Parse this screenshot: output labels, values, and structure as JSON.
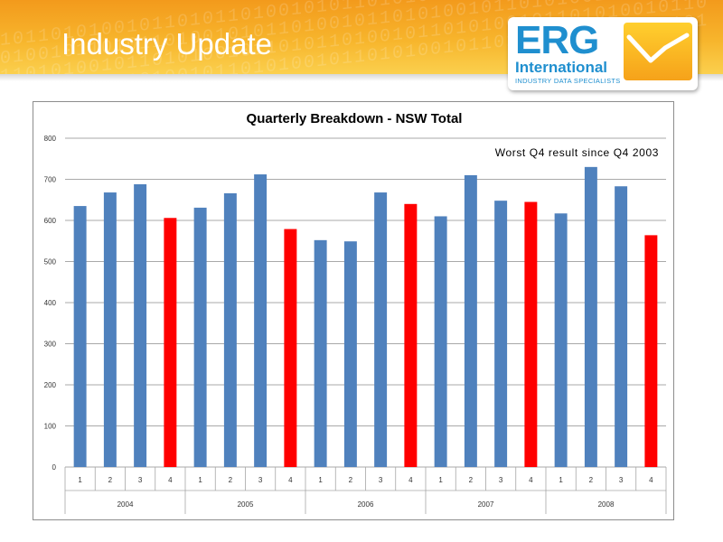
{
  "slide": {
    "title": "Industry Update",
    "logo": {
      "name": "ERG",
      "subtitle": "International",
      "tagline": "INDUSTRY DATA SPECIALISTS"
    },
    "banner_colors": [
      "#f39a1c",
      "#fbd04e"
    ]
  },
  "chart_data": {
    "type": "bar",
    "title": "Quarterly Breakdown - NSW Total",
    "annotation": "Worst Q4 result since Q4 2003",
    "xlabel": "",
    "ylabel": "",
    "ylim": [
      0,
      800
    ],
    "yticks": [
      0,
      100,
      200,
      300,
      400,
      500,
      600,
      700,
      800
    ],
    "grid": true,
    "legend": false,
    "groups": [
      {
        "label": "2004",
        "quarters": [
          "1",
          "2",
          "3",
          "4"
        ],
        "values": [
          635,
          668,
          688,
          606
        ]
      },
      {
        "label": "2005",
        "quarters": [
          "1",
          "2",
          "3",
          "4"
        ],
        "values": [
          631,
          666,
          712,
          579
        ]
      },
      {
        "label": "2006",
        "quarters": [
          "1",
          "2",
          "3",
          "4"
        ],
        "values": [
          552,
          549,
          668,
          640
        ]
      },
      {
        "label": "2007",
        "quarters": [
          "1",
          "2",
          "3",
          "4"
        ],
        "values": [
          610,
          710,
          648,
          645
        ]
      },
      {
        "label": "2008",
        "quarters": [
          "1",
          "2",
          "3",
          "4"
        ],
        "values": [
          617,
          730,
          683,
          564
        ]
      }
    ],
    "colors": {
      "q1_q3": "#4f81bd",
      "q4": "#ff0000",
      "grid": "#8c8c8c"
    }
  }
}
